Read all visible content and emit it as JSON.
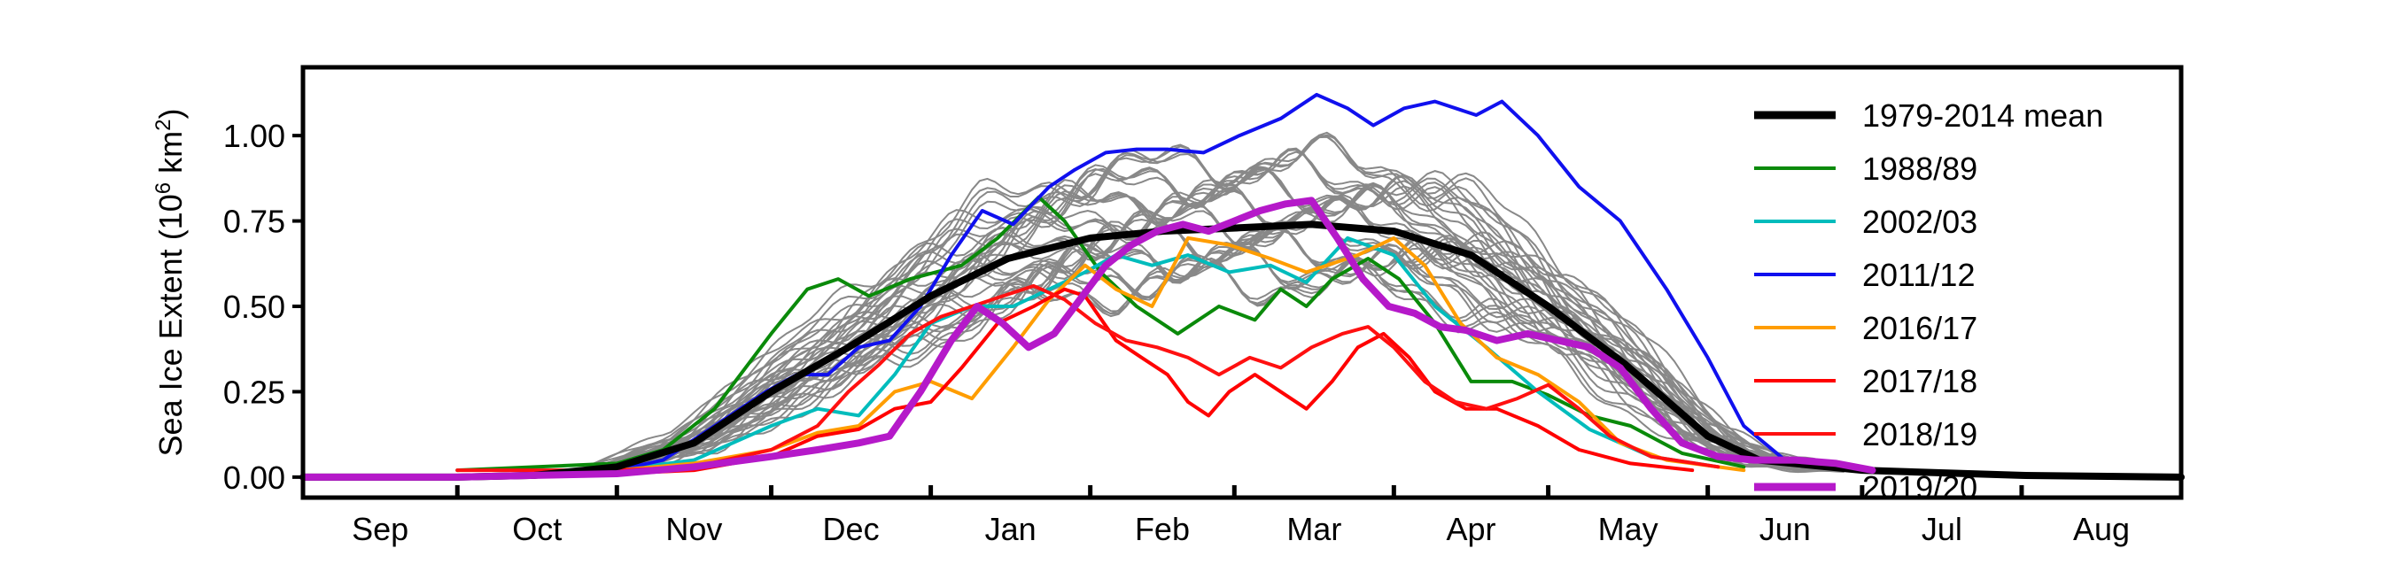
{
  "chart_data": {
    "type": "line",
    "xlabel": "",
    "ylabel_main": "Sea Ice Extent (10",
    "ylabel_sup": "6",
    "ylabel_unit": " km",
    "ylabel_sup2": "2",
    "ylabel_close": ")",
    "xlim": [
      0,
      365
    ],
    "ylim": [
      -0.06,
      1.2
    ],
    "month_ticks": [
      0,
      30,
      61,
      91,
      122,
      153,
      181,
      212,
      242,
      273,
      303,
      334,
      365
    ],
    "month_labels": [
      "Sep",
      "Oct",
      "Nov",
      "Dec",
      "Jan",
      "Feb",
      "Mar",
      "Apr",
      "May",
      "Jun",
      "Jul",
      "Aug"
    ],
    "month_label_positions": [
      15,
      45.5,
      76,
      106.5,
      137.5,
      167,
      196.5,
      227,
      257.5,
      288,
      318.5,
      349.5
    ],
    "y_ticks": [
      0.0,
      0.25,
      0.5,
      0.75,
      1.0
    ],
    "y_tick_labels": [
      "0.00",
      "0.25",
      "0.50",
      "0.75",
      "1.00"
    ],
    "background_lines": {
      "color": "#888888",
      "count": 36,
      "start_day": 55,
      "end_day": 300
    },
    "series": [
      {
        "name": "1979-2014 mean",
        "color": "#000000",
        "points": [
          [
            0,
            0
          ],
          [
            30,
            0
          ],
          [
            45,
            0.005
          ],
          [
            61,
            0.03
          ],
          [
            76,
            0.1
          ],
          [
            91,
            0.25
          ],
          [
            106,
            0.38
          ],
          [
            122,
            0.53
          ],
          [
            137,
            0.64
          ],
          [
            153,
            0.7
          ],
          [
            167,
            0.72
          ],
          [
            182,
            0.73
          ],
          [
            196,
            0.74
          ],
          [
            212,
            0.72
          ],
          [
            227,
            0.65
          ],
          [
            242,
            0.5
          ],
          [
            257,
            0.33
          ],
          [
            273,
            0.12
          ],
          [
            283,
            0.05
          ],
          [
            303,
            0.02
          ],
          [
            334,
            0.005
          ],
          [
            365,
            0
          ]
        ]
      },
      {
        "name": "1988/89",
        "color": "#0a8a0a",
        "points": [
          [
            30,
            0.02
          ],
          [
            61,
            0.04
          ],
          [
            70,
            0.08
          ],
          [
            80,
            0.2
          ],
          [
            91,
            0.42
          ],
          [
            98,
            0.55
          ],
          [
            104,
            0.58
          ],
          [
            110,
            0.53
          ],
          [
            118,
            0.58
          ],
          [
            128,
            0.62
          ],
          [
            135,
            0.7
          ],
          [
            143,
            0.82
          ],
          [
            148,
            0.75
          ],
          [
            155,
            0.6
          ],
          [
            162,
            0.5
          ],
          [
            170,
            0.42
          ],
          [
            178,
            0.5
          ],
          [
            185,
            0.46
          ],
          [
            190,
            0.55
          ],
          [
            195,
            0.5
          ],
          [
            200,
            0.58
          ],
          [
            207,
            0.64
          ],
          [
            213,
            0.58
          ],
          [
            220,
            0.45
          ],
          [
            227,
            0.28
          ],
          [
            235,
            0.28
          ],
          [
            242,
            0.24
          ],
          [
            250,
            0.18
          ],
          [
            258,
            0.15
          ],
          [
            268,
            0.07
          ],
          [
            280,
            0.03
          ]
        ]
      },
      {
        "name": "2002/03",
        "color": "#00bcbc",
        "points": [
          [
            61,
            0.02
          ],
          [
            76,
            0.05
          ],
          [
            91,
            0.15
          ],
          [
            100,
            0.2
          ],
          [
            108,
            0.18
          ],
          [
            115,
            0.3
          ],
          [
            122,
            0.45
          ],
          [
            130,
            0.5
          ],
          [
            138,
            0.5
          ],
          [
            145,
            0.55
          ],
          [
            152,
            0.6
          ],
          [
            158,
            0.65
          ],
          [
            165,
            0.62
          ],
          [
            172,
            0.65
          ],
          [
            180,
            0.6
          ],
          [
            188,
            0.62
          ],
          [
            195,
            0.57
          ],
          [
            203,
            0.7
          ],
          [
            212,
            0.65
          ],
          [
            220,
            0.5
          ],
          [
            230,
            0.38
          ],
          [
            240,
            0.25
          ],
          [
            250,
            0.14
          ],
          [
            262,
            0.06
          ],
          [
            275,
            0.03
          ]
        ]
      },
      {
        "name": "2011/12",
        "color": "#1010ee",
        "points": [
          [
            50,
            0.01
          ],
          [
            61,
            0.02
          ],
          [
            70,
            0.05
          ],
          [
            80,
            0.15
          ],
          [
            90,
            0.25
          ],
          [
            96,
            0.3
          ],
          [
            102,
            0.3
          ],
          [
            108,
            0.38
          ],
          [
            114,
            0.4
          ],
          [
            120,
            0.5
          ],
          [
            126,
            0.65
          ],
          [
            132,
            0.78
          ],
          [
            138,
            0.74
          ],
          [
            145,
            0.85
          ],
          [
            150,
            0.9
          ],
          [
            156,
            0.95
          ],
          [
            162,
            0.96
          ],
          [
            168,
            0.96
          ],
          [
            175,
            0.95
          ],
          [
            182,
            1.0
          ],
          [
            190,
            1.05
          ],
          [
            197,
            1.12
          ],
          [
            203,
            1.08
          ],
          [
            208,
            1.03
          ],
          [
            214,
            1.08
          ],
          [
            220,
            1.1
          ],
          [
            228,
            1.06
          ],
          [
            233,
            1.1
          ],
          [
            240,
            1.0
          ],
          [
            248,
            0.85
          ],
          [
            256,
            0.75
          ],
          [
            265,
            0.55
          ],
          [
            273,
            0.35
          ],
          [
            280,
            0.15
          ],
          [
            288,
            0.05
          ],
          [
            300,
            0.02
          ]
        ]
      },
      {
        "name": "2016/17",
        "color": "#ff9d00",
        "points": [
          [
            61,
            0.02
          ],
          [
            76,
            0.04
          ],
          [
            91,
            0.08
          ],
          [
            100,
            0.13
          ],
          [
            108,
            0.15
          ],
          [
            115,
            0.25
          ],
          [
            122,
            0.28
          ],
          [
            130,
            0.23
          ],
          [
            138,
            0.38
          ],
          [
            145,
            0.52
          ],
          [
            152,
            0.62
          ],
          [
            158,
            0.55
          ],
          [
            165,
            0.5
          ],
          [
            172,
            0.7
          ],
          [
            180,
            0.68
          ],
          [
            188,
            0.64
          ],
          [
            195,
            0.6
          ],
          [
            205,
            0.65
          ],
          [
            212,
            0.7
          ],
          [
            218,
            0.62
          ],
          [
            225,
            0.45
          ],
          [
            232,
            0.35
          ],
          [
            240,
            0.3
          ],
          [
            248,
            0.22
          ],
          [
            256,
            0.1
          ],
          [
            265,
            0.05
          ],
          [
            280,
            0.02
          ]
        ]
      },
      {
        "name": "2017/18",
        "color": "#ff0000",
        "points": [
          [
            61,
            0.01
          ],
          [
            76,
            0.02
          ],
          [
            91,
            0.06
          ],
          [
            100,
            0.12
          ],
          [
            108,
            0.14
          ],
          [
            115,
            0.2
          ],
          [
            122,
            0.22
          ],
          [
            128,
            0.32
          ],
          [
            135,
            0.45
          ],
          [
            142,
            0.5
          ],
          [
            148,
            0.55
          ],
          [
            152,
            0.53
          ],
          [
            158,
            0.4
          ],
          [
            163,
            0.35
          ],
          [
            168,
            0.3
          ],
          [
            172,
            0.22
          ],
          [
            176,
            0.18
          ],
          [
            180,
            0.25
          ],
          [
            185,
            0.3
          ],
          [
            190,
            0.25
          ],
          [
            195,
            0.2
          ],
          [
            200,
            0.28
          ],
          [
            205,
            0.38
          ],
          [
            210,
            0.42
          ],
          [
            215,
            0.35
          ],
          [
            220,
            0.25
          ],
          [
            226,
            0.2
          ],
          [
            232,
            0.2
          ],
          [
            240,
            0.15
          ],
          [
            248,
            0.08
          ],
          [
            258,
            0.04
          ],
          [
            270,
            0.02
          ]
        ]
      },
      {
        "name": "2018/19",
        "color": "#ff1010",
        "points": [
          [
            30,
            0.02
          ],
          [
            61,
            0.02
          ],
          [
            76,
            0.03
          ],
          [
            91,
            0.08
          ],
          [
            100,
            0.15
          ],
          [
            106,
            0.25
          ],
          [
            112,
            0.33
          ],
          [
            118,
            0.42
          ],
          [
            124,
            0.47
          ],
          [
            130,
            0.5
          ],
          [
            136,
            0.53
          ],
          [
            142,
            0.56
          ],
          [
            148,
            0.52
          ],
          [
            154,
            0.45
          ],
          [
            160,
            0.4
          ],
          [
            166,
            0.38
          ],
          [
            172,
            0.35
          ],
          [
            178,
            0.3
          ],
          [
            184,
            0.35
          ],
          [
            190,
            0.32
          ],
          [
            196,
            0.38
          ],
          [
            202,
            0.42
          ],
          [
            207,
            0.44
          ],
          [
            212,
            0.38
          ],
          [
            218,
            0.28
          ],
          [
            224,
            0.22
          ],
          [
            230,
            0.2
          ],
          [
            236,
            0.23
          ],
          [
            242,
            0.27
          ],
          [
            248,
            0.2
          ],
          [
            254,
            0.12
          ],
          [
            262,
            0.06
          ],
          [
            275,
            0.03
          ]
        ]
      },
      {
        "name": "2019/20",
        "color": "#b519c9",
        "points": [
          [
            0,
            0
          ],
          [
            30,
            0
          ],
          [
            45,
            0.005
          ],
          [
            61,
            0.01
          ],
          [
            76,
            0.03
          ],
          [
            91,
            0.06
          ],
          [
            100,
            0.08
          ],
          [
            108,
            0.1
          ],
          [
            114,
            0.12
          ],
          [
            120,
            0.25
          ],
          [
            126,
            0.4
          ],
          [
            131,
            0.5
          ],
          [
            136,
            0.45
          ],
          [
            141,
            0.38
          ],
          [
            146,
            0.42
          ],
          [
            151,
            0.52
          ],
          [
            156,
            0.62
          ],
          [
            161,
            0.68
          ],
          [
            166,
            0.72
          ],
          [
            171,
            0.74
          ],
          [
            176,
            0.72
          ],
          [
            181,
            0.75
          ],
          [
            186,
            0.78
          ],
          [
            191,
            0.8
          ],
          [
            196,
            0.81
          ],
          [
            201,
            0.7
          ],
          [
            206,
            0.58
          ],
          [
            211,
            0.5
          ],
          [
            216,
            0.48
          ],
          [
            221,
            0.44
          ],
          [
            226,
            0.43
          ],
          [
            232,
            0.4
          ],
          [
            238,
            0.42
          ],
          [
            244,
            0.4
          ],
          [
            250,
            0.38
          ],
          [
            256,
            0.32
          ],
          [
            262,
            0.2
          ],
          [
            268,
            0.1
          ],
          [
            275,
            0.06
          ],
          [
            282,
            0.05
          ],
          [
            290,
            0.05
          ],
          [
            298,
            0.04
          ],
          [
            305,
            0.02
          ]
        ]
      }
    ],
    "legend": {
      "position": "top-right",
      "order": [
        "1979-2014 mean",
        "1988/89",
        "2002/03",
        "2011/12",
        "2016/17",
        "2017/18",
        "2018/19",
        "2019/20"
      ]
    }
  }
}
